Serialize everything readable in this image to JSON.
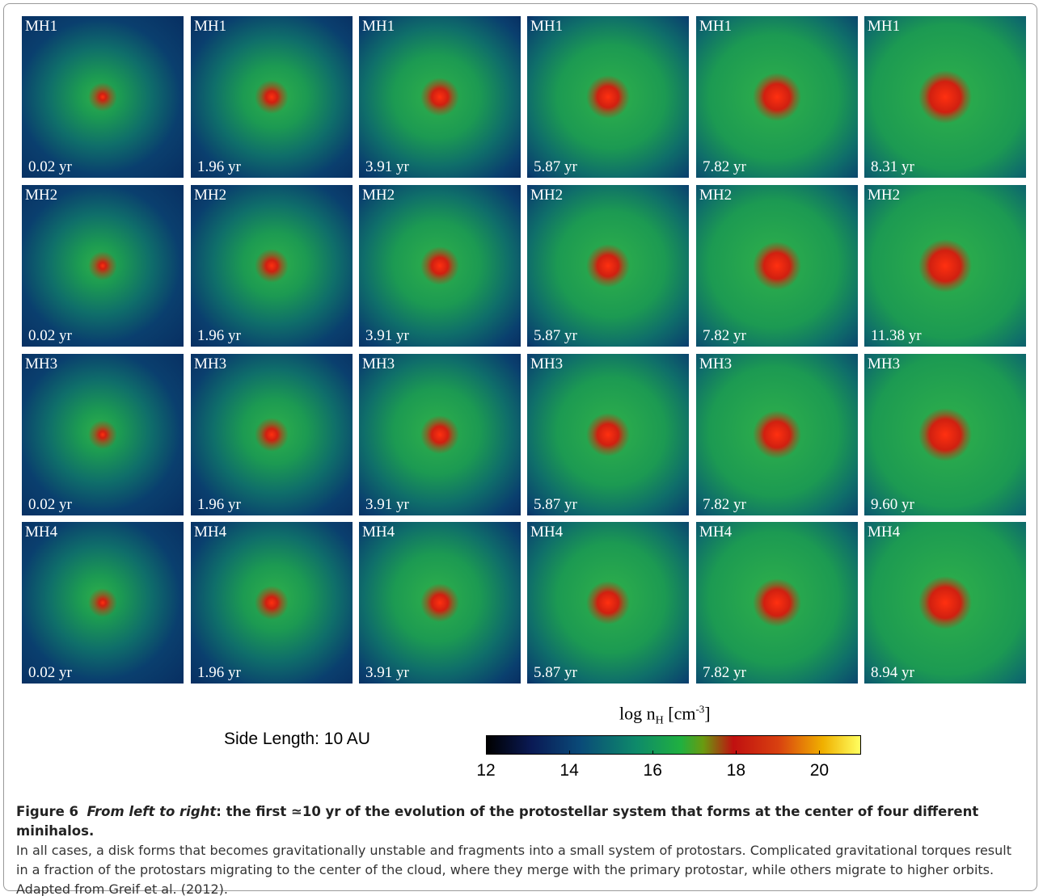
{
  "figure": {
    "panels": [
      {
        "halo": "MH1",
        "times": [
          "0.02 yr",
          "1.96 yr",
          "3.91 yr",
          "5.87 yr",
          "7.82 yr",
          "8.31 yr"
        ]
      },
      {
        "halo": "MH2",
        "times": [
          "0.02 yr",
          "1.96 yr",
          "3.91 yr",
          "5.87 yr",
          "7.82 yr",
          "11.38 yr"
        ]
      },
      {
        "halo": "MH3",
        "times": [
          "0.02 yr",
          "1.96 yr",
          "3.91 yr",
          "5.87 yr",
          "7.82 yr",
          "9.60 yr"
        ]
      },
      {
        "halo": "MH4",
        "times": [
          "0.02 yr",
          "1.96 yr",
          "3.91 yr",
          "5.87 yr",
          "7.82 yr",
          "8.94 yr"
        ]
      }
    ],
    "side_length": "Side Length: 10 AU",
    "colorbar": {
      "label_main": "log n",
      "label_sub": "H",
      "label_unit": " [cm",
      "label_sup": "-3",
      "label_close": "]",
      "range": [
        12,
        21
      ],
      "ticks": [
        12,
        14,
        16,
        18,
        20
      ]
    }
  },
  "caption": {
    "figure_number": "Figure 6",
    "italic_lead": "From left to right",
    "bold_text": ": the first ≃10 yr of the evolution of the protostellar system that forms at the center of four different minihalos.",
    "body": "In all cases, a disk forms that becomes gravitationally unstable and fragments into a small system of protostars. Complicated gravitational torques result in a fraction of the protostars migrating to the center of the cloud, where they merge with the primary protostar, while others migrate to higher orbits. Adapted from Greif et al. (2012)."
  }
}
